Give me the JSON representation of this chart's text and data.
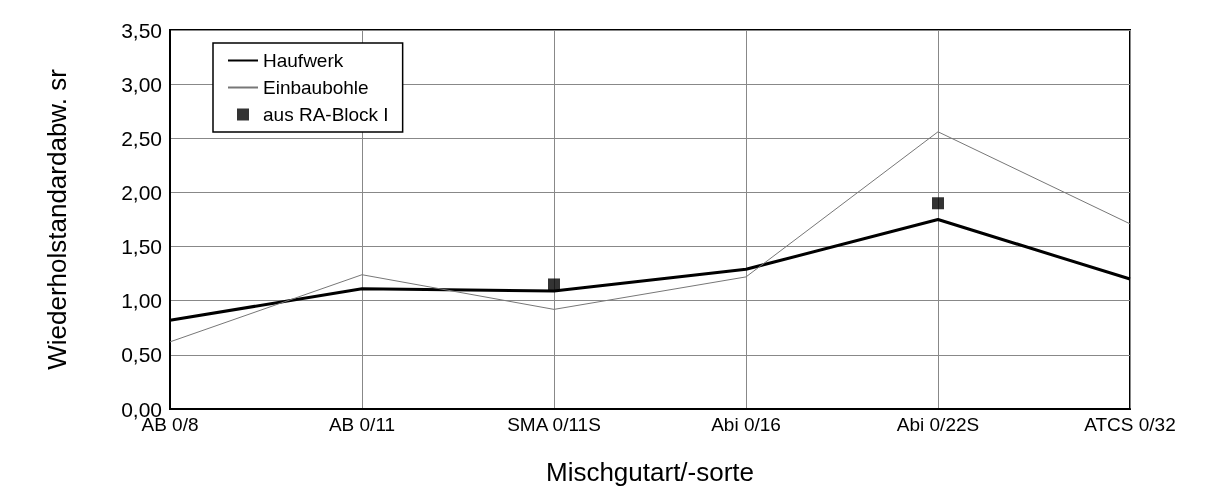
{
  "chart_data": {
    "type": "line",
    "xlabel": "Mischgutart/-sorte",
    "ylabel": "Wiederholstandardabw. sr",
    "categories": [
      "AB 0/8",
      "AB 0/11",
      "SMA 0/11S",
      "Abi 0/16",
      "Abi 0/22S",
      "ATCS 0/32"
    ],
    "series": [
      {
        "name": "Haufwerk",
        "color": "#000000",
        "values": [
          0.82,
          1.11,
          1.09,
          1.29,
          1.75,
          1.2
        ]
      },
      {
        "name": "Einbaubohle",
        "color": "#777777",
        "values": [
          0.62,
          1.24,
          0.92,
          1.22,
          2.56,
          1.71
        ]
      },
      {
        "name": "aus RA-Block I",
        "type": "scatter",
        "marker": "square",
        "color": "#000000",
        "x": [
          "SMA 0/11S",
          "Abi 0/22S"
        ],
        "values": [
          1.15,
          1.9
        ]
      }
    ],
    "ylim": [
      0,
      3.5
    ],
    "yticks": [
      {
        "value": 0,
        "label": "0,00"
      },
      {
        "value": 0.5,
        "label": "0,50"
      },
      {
        "value": 1,
        "label": "1,00"
      },
      {
        "value": 1.5,
        "label": "1,50"
      },
      {
        "value": 2,
        "label": "2,00"
      },
      {
        "value": 2.5,
        "label": "2,50"
      },
      {
        "value": 3,
        "label": "3,00"
      },
      {
        "value": 3.5,
        "label": "3,50"
      }
    ],
    "grid": true,
    "legend": "top left",
    "marker": "none"
  }
}
